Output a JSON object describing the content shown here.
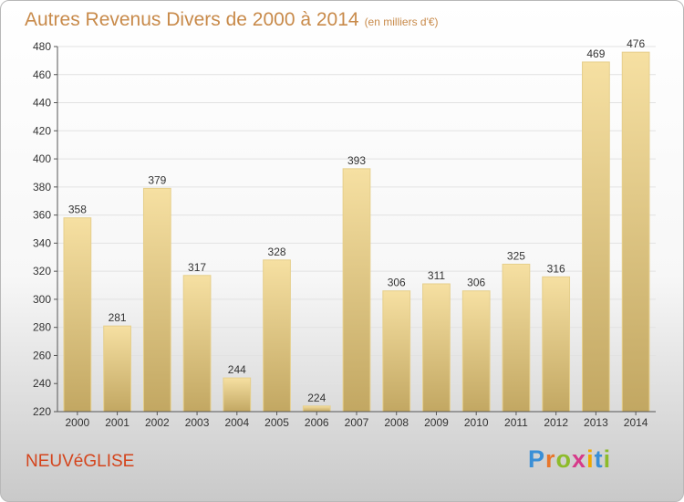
{
  "header": {
    "title": "Autres Revenus Divers de 2000 à 2014",
    "unit": "(en milliers d'€)"
  },
  "footer": {
    "commune": "NEUVéGLISE",
    "logo_letters": [
      {
        "char": "P",
        "color": "#3a8fd6"
      },
      {
        "char": "r",
        "color": "#e8762b"
      },
      {
        "char": "o",
        "color": "#8dbb2b"
      },
      {
        "char": "x",
        "color": "#d63a8a"
      },
      {
        "char": "i",
        "color": "#f0a800"
      },
      {
        "char": "t",
        "color": "#3a8fd6"
      },
      {
        "char": "i",
        "color": "#8dbb2b"
      }
    ]
  },
  "colors": {
    "bar_light": "#f6e0a2",
    "bar_dark": "#c2a762",
    "grid": "#e2e2e2",
    "axis": "#555555"
  },
  "chart_data": {
    "type": "bar",
    "title": "Autres Revenus Divers de 2000 à 2014",
    "subtitle": "(en milliers d'€)",
    "categories": [
      "2000",
      "2001",
      "2002",
      "2003",
      "2004",
      "2005",
      "2006",
      "2007",
      "2008",
      "2009",
      "2010",
      "2011",
      "2012",
      "2013",
      "2014"
    ],
    "values": [
      358,
      281,
      379,
      317,
      244,
      328,
      224,
      393,
      306,
      311,
      306,
      325,
      316,
      469,
      476
    ],
    "ylim": [
      220,
      480
    ],
    "yticks": [
      220,
      240,
      260,
      280,
      300,
      320,
      340,
      360,
      380,
      400,
      420,
      440,
      460,
      480
    ],
    "grid": true,
    "xlabel": "",
    "ylabel": ""
  }
}
